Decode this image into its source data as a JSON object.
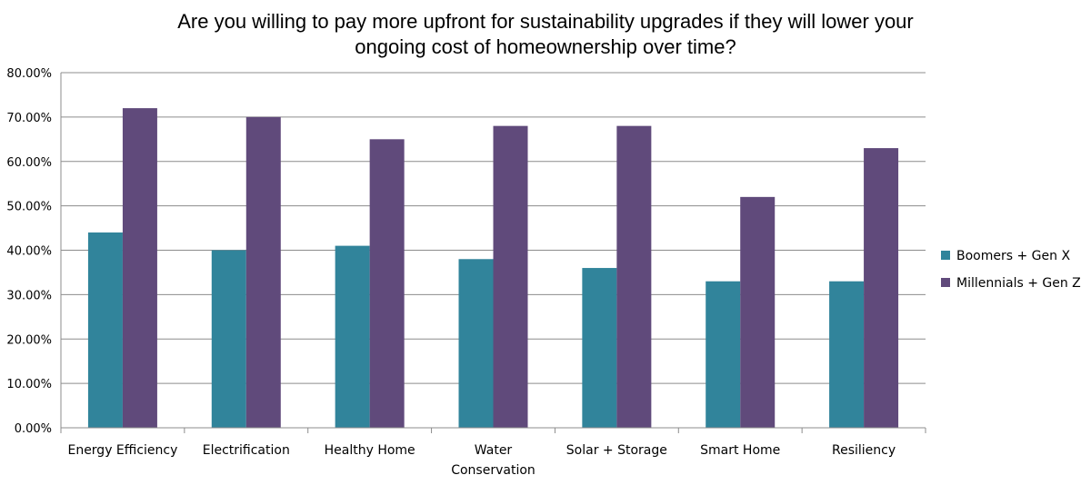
{
  "chart_data": {
    "type": "bar",
    "title_lines": [
      "Are you willing to pay more upfront for sustainability upgrades if they will lower your",
      "ongoing cost of homeownership over time?"
    ],
    "categories": [
      [
        "Energy Efficiency"
      ],
      [
        "Electrification"
      ],
      [
        "Healthy Home"
      ],
      [
        "Water",
        "Conservation"
      ],
      [
        "Solar + Storage"
      ],
      [
        "Smart Home"
      ],
      [
        "Resiliency"
      ]
    ],
    "series": [
      {
        "name": "Boomers + Gen X",
        "color": "#31849b",
        "values": [
          0.44,
          0.4,
          0.41,
          0.38,
          0.36,
          0.33,
          0.33
        ]
      },
      {
        "name": "Millennials + Gen Z",
        "color": "#604a7b",
        "values": [
          0.72,
          0.7,
          0.65,
          0.68,
          0.68,
          0.52,
          0.63
        ]
      }
    ],
    "ylim": [
      0,
      0.8
    ],
    "yticks": [
      0,
      0.1,
      0.2,
      0.3,
      0.4,
      0.5,
      0.6,
      0.7,
      0.8
    ],
    "ytick_labels": [
      "0.00%",
      "10.00%",
      "20.00%",
      "30.00%",
      "40.00%",
      "50.00%",
      "60.00%",
      "70.00%",
      "80.00%"
    ],
    "grid": true,
    "grid_color": "#8c8c8c",
    "legend_position": "right"
  }
}
